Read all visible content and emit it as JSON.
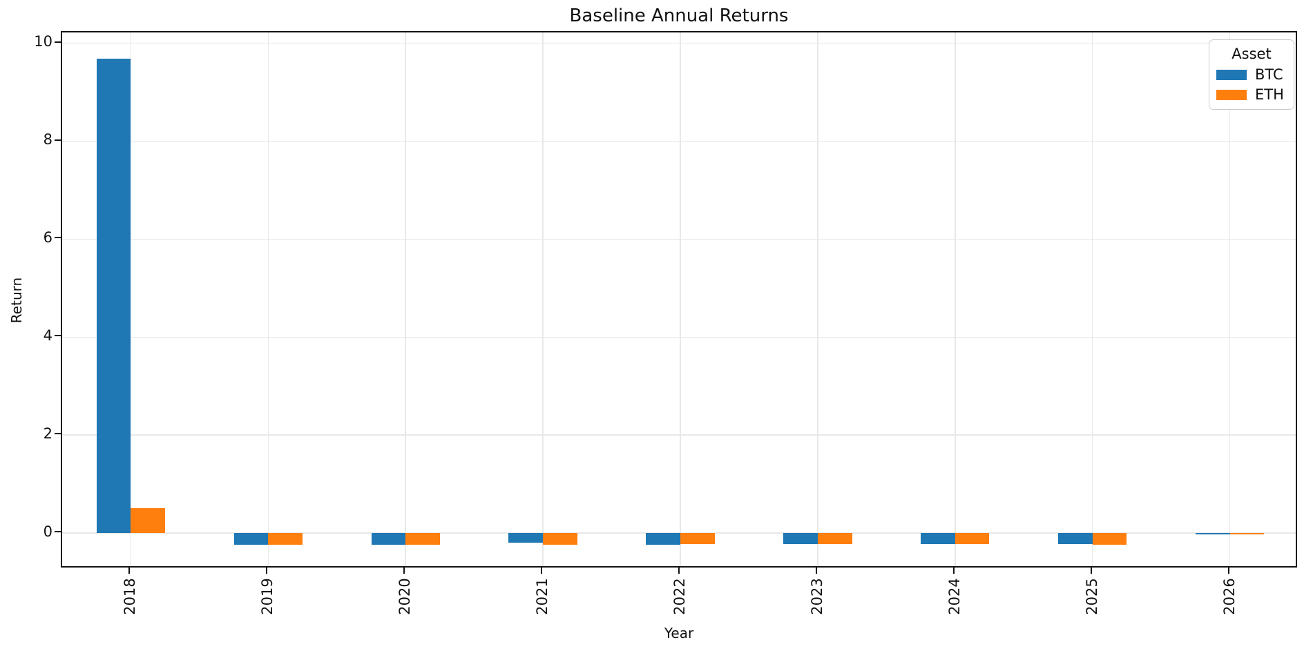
{
  "title": "Baseline Annual Returns",
  "axes": {
    "xlabel": "Year",
    "ylabel": "Return"
  },
  "legend": {
    "title": "Asset",
    "items": [
      {
        "label": "BTC",
        "color": "#1f77b4"
      },
      {
        "label": "ETH",
        "color": "#ff7f0e"
      }
    ]
  },
  "colors": {
    "btc": "#1f77b4",
    "eth": "#ff7f0e",
    "grid": "#e8e8e8",
    "spine": "#111111",
    "background": "#ffffff"
  },
  "chart_data": {
    "type": "bar",
    "title": "Baseline Annual Returns",
    "xlabel": "Year",
    "ylabel": "Return",
    "categories": [
      "2018",
      "2019",
      "2020",
      "2021",
      "2022",
      "2023",
      "2024",
      "2025",
      "2026"
    ],
    "series": [
      {
        "name": "BTC",
        "color": "#1f77b4",
        "values": [
          9.69,
          -0.23,
          -0.23,
          -0.19,
          -0.23,
          -0.22,
          -0.22,
          -0.22,
          -0.02
        ]
      },
      {
        "name": "ETH",
        "color": "#ff7f0e",
        "values": [
          0.51,
          -0.23,
          -0.23,
          -0.23,
          -0.22,
          -0.22,
          -0.22,
          -0.23,
          -0.02
        ]
      }
    ],
    "yticks": [
      0,
      2,
      4,
      6,
      8,
      10
    ],
    "ylim": [
      -0.73,
      10.22
    ],
    "grid": true,
    "legend_title": "Asset",
    "legend_position": "upper right",
    "bar_group_width": 0.5,
    "xtick_rotation": 90
  }
}
